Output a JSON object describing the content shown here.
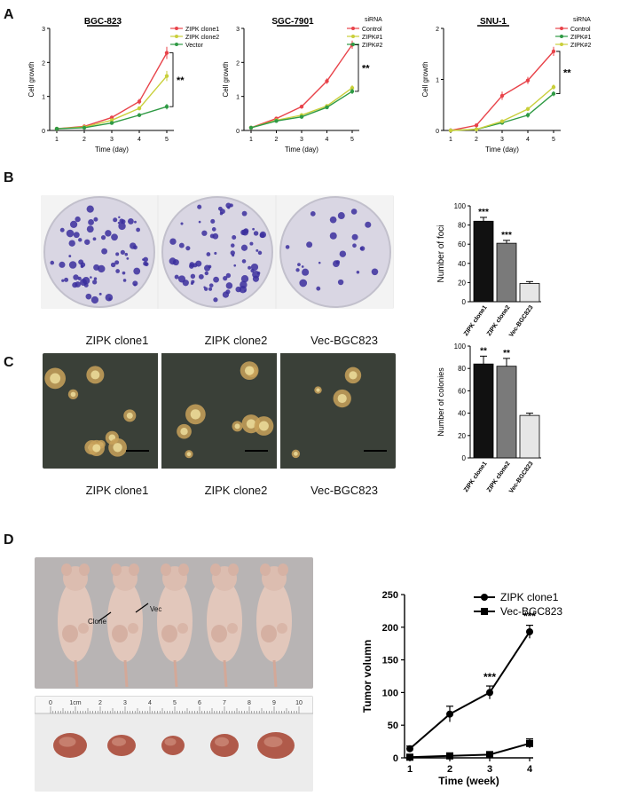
{
  "panels": {
    "a": "A",
    "b": "B",
    "c": "C",
    "d": "D"
  },
  "colors": {
    "red": "#e8434a",
    "yellow": "#c9cf3a",
    "green": "#2f9a44",
    "dish_bg": "#d9d6e3",
    "colony": "#3b2f9e",
    "soft_agar_bg": "#3a4038",
    "mouse_bg": "#b8b4b4",
    "tumor": "#b05a4a"
  },
  "panelB": {
    "captions": [
      "ZIPK clone1",
      "ZIPK clone2",
      "Vec-BGC823"
    ]
  },
  "panelC": {
    "captions": [
      "ZIPK clone1",
      "ZIPK clone2",
      "Vec-BGC823"
    ]
  },
  "panelD": {
    "arrow_labels": {
      "clone": "Clone",
      "vec": "Vec"
    },
    "ruler": {
      "ticks": [
        "0",
        "1cm",
        "2",
        "3",
        "4",
        "5",
        "6",
        "7",
        "8",
        "9",
        "10"
      ]
    }
  },
  "chart_data": [
    {
      "id": "bgc823",
      "type": "line",
      "title": "BGC-823",
      "xlabel": "Time (day)",
      "ylabel": "Cell  growth",
      "x": [
        1,
        2,
        3,
        4,
        5
      ],
      "ylim": [
        0,
        3
      ],
      "yticks": [
        "0",
        "1",
        "2",
        "3"
      ],
      "series": [
        {
          "name": "ZIPK clone1",
          "color": "#e8434a",
          "values": [
            0.05,
            0.12,
            0.38,
            0.85,
            2.28
          ],
          "err": [
            0.02,
            0.03,
            0.05,
            0.08,
            0.18
          ]
        },
        {
          "name": "ZIPK clone2",
          "color": "#c9cf3a",
          "values": [
            0.05,
            0.1,
            0.3,
            0.65,
            1.6
          ],
          "err": [
            0.02,
            0.03,
            0.04,
            0.06,
            0.15
          ]
        },
        {
          "name": "Vector",
          "color": "#2f9a44",
          "values": [
            0.05,
            0.08,
            0.22,
            0.45,
            0.7
          ],
          "err": [
            0.02,
            0.02,
            0.03,
            0.04,
            0.08
          ]
        }
      ],
      "annotation": "**",
      "legend_title": ""
    },
    {
      "id": "sgc7901",
      "type": "line",
      "title": "SGC-7901",
      "xlabel": "Time (day)",
      "ylabel": "Cell  growth",
      "x": [
        1,
        2,
        3,
        4,
        5
      ],
      "ylim": [
        0,
        3
      ],
      "yticks": [
        "0",
        "1",
        "2",
        "3"
      ],
      "series": [
        {
          "name": "Control",
          "color": "#e8434a",
          "values": [
            0.08,
            0.35,
            0.7,
            1.45,
            2.52
          ],
          "err": [
            0.02,
            0.04,
            0.06,
            0.08,
            0.12
          ]
        },
        {
          "name": "ZIPK#1",
          "color": "#c9cf3a",
          "values": [
            0.08,
            0.3,
            0.45,
            0.72,
            1.25
          ],
          "err": [
            0.02,
            0.03,
            0.04,
            0.05,
            0.08
          ]
        },
        {
          "name": "ZIPK#2",
          "color": "#2f9a44",
          "values": [
            0.08,
            0.28,
            0.4,
            0.68,
            1.15
          ],
          "err": [
            0.02,
            0.03,
            0.04,
            0.05,
            0.08
          ]
        }
      ],
      "annotation": "**",
      "legend_title": "siRNA"
    },
    {
      "id": "snu1",
      "type": "line",
      "title": "SNU-1",
      "xlabel": "Time (day)",
      "ylabel": "Cell  growth",
      "x": [
        1,
        2,
        3,
        4,
        5
      ],
      "ylim": [
        0,
        2
      ],
      "yticks": [
        "0",
        "1",
        "2"
      ],
      "series": [
        {
          "name": "Control",
          "color": "#e8434a",
          "values": [
            0.0,
            0.1,
            0.68,
            0.98,
            1.55
          ],
          "err": [
            0.01,
            0.02,
            0.08,
            0.07,
            0.09
          ]
        },
        {
          "name": "ZIPK#1",
          "color": "#2f9a44",
          "values": [
            0.0,
            0.02,
            0.15,
            0.3,
            0.72
          ],
          "err": [
            0.01,
            0.01,
            0.02,
            0.05,
            0.05
          ]
        },
        {
          "name": "ZIPK#2",
          "color": "#c9cf3a",
          "values": [
            0.0,
            0.02,
            0.18,
            0.42,
            0.85
          ],
          "err": [
            0.01,
            0.01,
            0.02,
            0.04,
            0.05
          ]
        }
      ],
      "annotation": "**",
      "legend_title": "siRNA"
    },
    {
      "id": "foci",
      "type": "bar",
      "ylabel": "Number of foci",
      "categories": [
        "ZIPK clone1",
        "ZIPK clone2",
        "Vec-BGC823"
      ],
      "values": [
        84,
        61,
        19
      ],
      "err": [
        4,
        3,
        2
      ],
      "annotations": [
        "***",
        "***",
        ""
      ],
      "colors": [
        "#111111",
        "#7a7a7a",
        "#e6e6e6"
      ],
      "ylim": [
        0,
        100
      ],
      "yticks": [
        "0",
        "20",
        "40",
        "60",
        "80",
        "100"
      ]
    },
    {
      "id": "colonies",
      "type": "bar",
      "ylabel": "Number of colonies",
      "categories": [
        "ZIPK clone1",
        "ZIPK clone2",
        "Vec-BGC823"
      ],
      "values": [
        84,
        82,
        38
      ],
      "err": [
        7,
        7,
        2
      ],
      "annotations": [
        "**",
        "**",
        ""
      ],
      "colors": [
        "#111111",
        "#7a7a7a",
        "#e6e6e6"
      ],
      "ylim": [
        0,
        100
      ],
      "yticks": [
        "0",
        "20",
        "40",
        "60",
        "80",
        "100"
      ]
    },
    {
      "id": "tumor",
      "type": "line",
      "xlabel": "Time (week)",
      "ylabel": "Tumor   volumn",
      "x": [
        1,
        2,
        3,
        4
      ],
      "ylim": [
        0,
        250
      ],
      "yticks": [
        "0",
        "50",
        "100",
        "150",
        "200",
        "250"
      ],
      "xticks": [
        "1",
        "2",
        "3",
        "4"
      ],
      "series": [
        {
          "name": "ZIPK clone1",
          "marker": "circle",
          "values": [
            14,
            67,
            100,
            193
          ],
          "err": [
            4,
            12,
            10,
            10
          ]
        },
        {
          "name": "Vec-BGC823",
          "marker": "square",
          "values": [
            1,
            3,
            5,
            22
          ],
          "err": [
            1,
            1,
            2,
            7
          ]
        }
      ],
      "annotations": [
        "",
        "",
        "***",
        "***"
      ]
    }
  ]
}
